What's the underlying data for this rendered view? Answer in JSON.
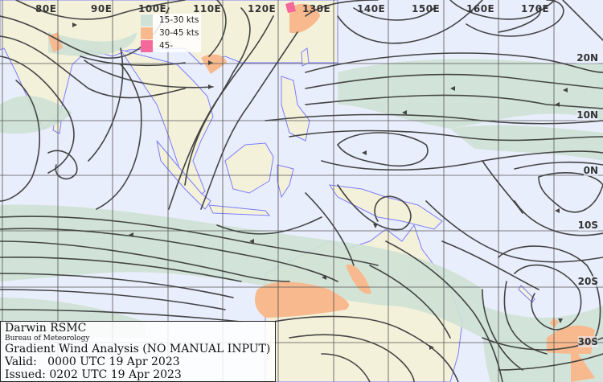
{
  "map": {
    "longitude_labels": [
      "80E",
      "90E",
      "100E",
      "110E",
      "120E",
      "130E",
      "140E",
      "150E",
      "160E",
      "170E"
    ],
    "latitude_labels": [
      "20N",
      "10N",
      "0N",
      "10S",
      "20S",
      "30S"
    ],
    "colors": {
      "ocean": "#e9eefc",
      "land": "#f4f1da",
      "wind_15_30": "#cfe2d5",
      "wind_30_45": "#f7b98d",
      "wind_45_plus": "#f5689a",
      "coastline": "#7b7cff",
      "streamline": "#444444",
      "grid": "#555555"
    }
  },
  "legend": {
    "items": [
      {
        "label": "15-30 kts",
        "color": "#cfe2d5"
      },
      {
        "label": "30-45 kts",
        "color": "#f7b98d"
      },
      {
        "label": "45-",
        "color": "#f5689a"
      }
    ]
  },
  "info": {
    "center": "Darwin RSMC",
    "agency": "Bureau of Meteorology",
    "product": "Gradient Wind Analysis (NO MANUAL INPUT)",
    "valid": "Valid:   0000 UTC 19 Apr 2023",
    "issued": "Issued: 0202 UTC 19 Apr 2023"
  }
}
